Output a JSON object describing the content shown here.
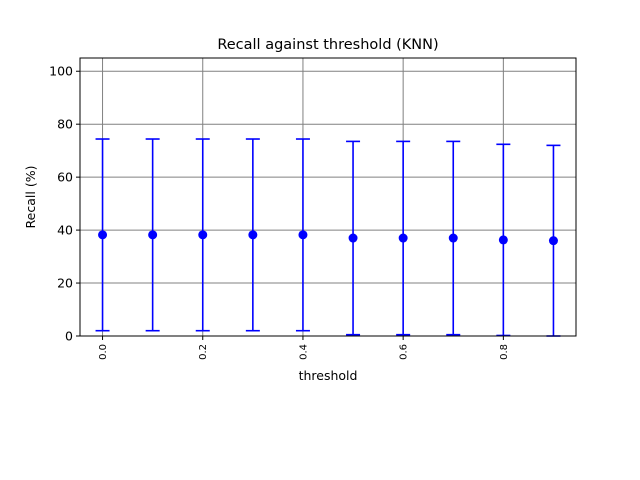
{
  "chart_data": {
    "type": "scatter",
    "title": "Recall against threshold (KNN)",
    "xlabel": "threshold",
    "ylabel": "Recall (%)",
    "xlim": [
      -0.045,
      0.945
    ],
    "ylim": [
      0,
      105
    ],
    "grid": true,
    "legend": "none",
    "x_ticks": [
      0.0,
      0.2,
      0.4,
      0.6,
      0.8
    ],
    "x_tick_labels": [
      "0.0",
      "0.2",
      "0.4",
      "0.6",
      "0.8"
    ],
    "x_tick_rotation": "vertical",
    "y_ticks": [
      0,
      20,
      40,
      60,
      80,
      100
    ],
    "y_tick_labels": [
      "0",
      "20",
      "40",
      "60",
      "80",
      "100"
    ],
    "series": [
      {
        "color": "#0000ff",
        "x": [
          0.0,
          0.1,
          0.2,
          0.3,
          0.4,
          0.5,
          0.6,
          0.7,
          0.8,
          0.9
        ],
        "y": [
          38.2,
          38.2,
          38.2,
          38.2,
          38.2,
          37.0,
          37.0,
          37.0,
          36.3,
          36.0
        ],
        "err_low": [
          2.0,
          2.0,
          2.0,
          2.0,
          2.0,
          0.5,
          0.5,
          0.5,
          0.2,
          0.0
        ],
        "err_high": [
          74.4,
          74.4,
          74.4,
          74.4,
          74.4,
          73.5,
          73.5,
          73.5,
          72.4,
          72.0
        ]
      }
    ]
  }
}
